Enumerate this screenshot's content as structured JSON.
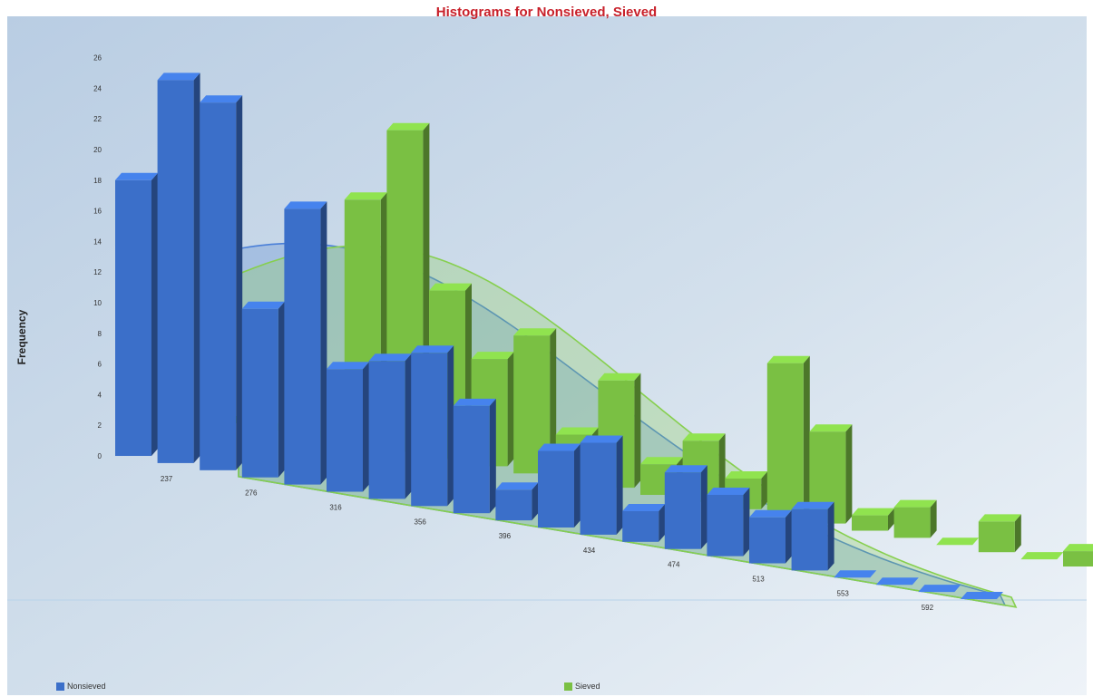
{
  "chart_data": {
    "type": "bar",
    "title": "Histograms for Nonsieved, Sieved",
    "ylabel": "Frequency",
    "xlabel": "",
    "ylim": [
      0,
      26
    ],
    "y_ticks": [
      0,
      2,
      4,
      6,
      8,
      10,
      12,
      14,
      16,
      18,
      20,
      22,
      24,
      26
    ],
    "x_tick_labels": [
      "237",
      "276",
      "316",
      "356",
      "396",
      "434",
      "474",
      "513",
      "553",
      "592"
    ],
    "grid": false,
    "legend_position": "bottom",
    "colors": {
      "Nonsieved": "#3b6fc9",
      "Sieved": "#7ac043"
    },
    "series": [
      {
        "name": "Nonsieved",
        "values": [
          18,
          25,
          24,
          11,
          18,
          8,
          9,
          10,
          7,
          2,
          5,
          6,
          2,
          5,
          4,
          3,
          4,
          0,
          0,
          0,
          0
        ]
      },
      {
        "name": "Sieved",
        "values": [
          0,
          0,
          0,
          16,
          21,
          11,
          7,
          9,
          3,
          7,
          2,
          4,
          2,
          10,
          6,
          1,
          2,
          0,
          2,
          0,
          1
        ]
      }
    ]
  }
}
